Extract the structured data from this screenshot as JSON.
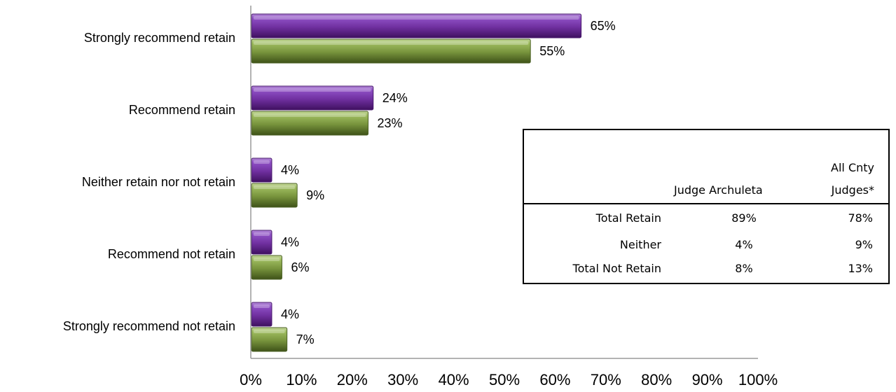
{
  "chart_data": {
    "type": "bar",
    "orientation": "horizontal",
    "categories": [
      "Strongly recommend retain",
      "Recommend retain",
      "Neither retain nor not retain",
      "Recommend not retain",
      "Strongly recommend not retain"
    ],
    "series": [
      {
        "values": [
          65,
          24,
          4,
          4,
          4
        ],
        "labels": [
          "65%",
          "24%",
          "4%",
          "4%",
          "4%"
        ],
        "color": "#7030A0"
      },
      {
        "values": [
          55,
          23,
          9,
          6,
          7
        ],
        "labels": [
          "55%",
          "23%",
          "9%",
          "6%",
          "7%"
        ],
        "color": "#77933C"
      }
    ],
    "xlim": [
      0,
      100
    ],
    "xticks": [
      "0%",
      "10%",
      "20%",
      "30%",
      "40%",
      "50%",
      "60%",
      "70%",
      "80%",
      "90%",
      "100%"
    ],
    "grid": false,
    "legend": "none"
  },
  "table": {
    "header_col1": "Judge Archuleta",
    "header_col2_line1": "All Cnty",
    "header_col2_line2": "Judges*",
    "rows": [
      {
        "label": "Total Retain",
        "v1": "89%",
        "v2": "78%"
      },
      {
        "label": "Neither",
        "v1": "4%",
        "v2": "9%"
      },
      {
        "label": "Total Not Retain",
        "v1": "8%",
        "v2": "13%"
      }
    ]
  }
}
